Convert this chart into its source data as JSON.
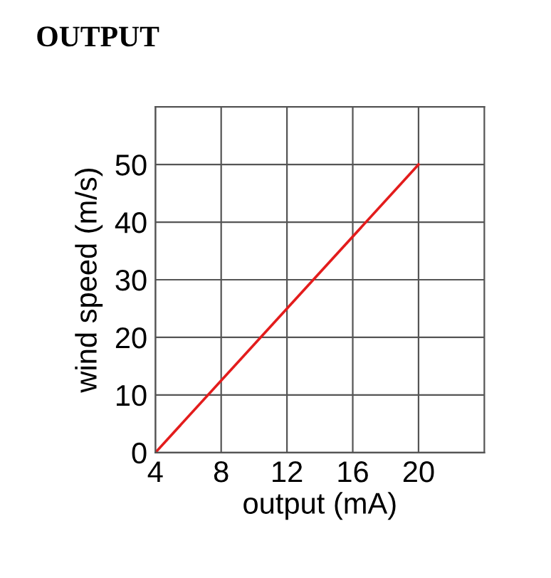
{
  "chart_data": {
    "type": "line",
    "title": "OUTPUT",
    "xlabel": "output (mA)",
    "ylabel": "wind speed (m/s)",
    "x": [
      4,
      20
    ],
    "series": [
      {
        "color": "#e31c1c",
        "values": [
          0,
          50
        ]
      }
    ],
    "xlim": [
      4,
      24
    ],
    "ylim": [
      0,
      60
    ],
    "xticks": [
      4,
      8,
      12,
      16,
      20
    ],
    "yticks": [
      0,
      10,
      20,
      30,
      40,
      50
    ],
    "grid": true,
    "marker": "none",
    "line_style": "solid",
    "legend": false
  }
}
